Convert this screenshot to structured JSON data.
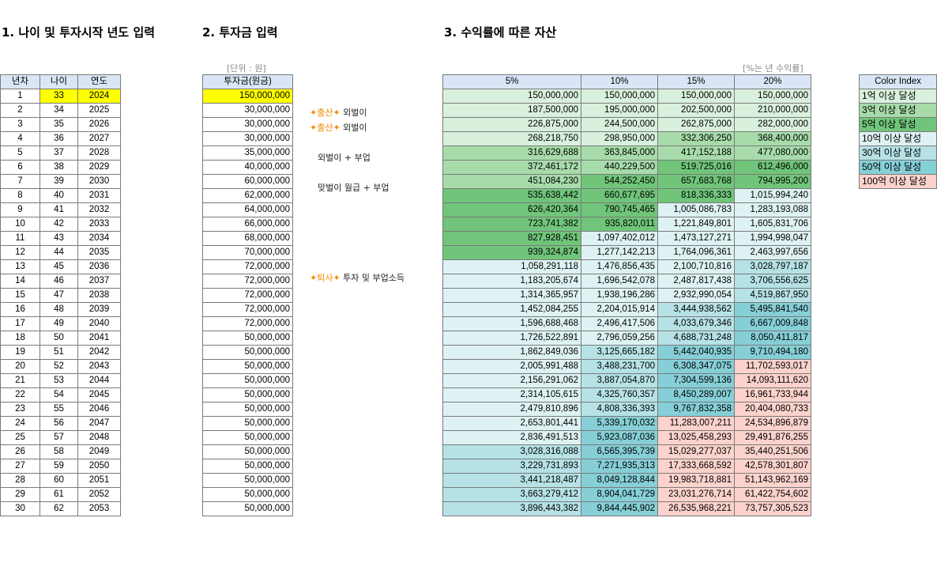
{
  "colors": {
    "header_bg": "#dae6f6",
    "input_highlight": "#ffff00",
    "tier_1": "#d9f0dc",
    "tier_3": "#a7dcaa",
    "tier_5": "#70c57a",
    "tier_10": "#dff2f3",
    "tier_30": "#b6e2e6",
    "tier_50": "#86cfd7",
    "tier_100": "#fbd2cc"
  },
  "sections": {
    "s1": "1. 나이 및 투자시작 년도 입력",
    "s2": "2. 투자금 입력",
    "s3": "3. 수익률에 따른 자산"
  },
  "units": {
    "won": "[단위 : 원]",
    "rate": "[%는 년 수익률]"
  },
  "table1": {
    "headers": [
      "년차",
      "나이",
      "연도"
    ],
    "rows": [
      [
        "1",
        "33",
        "2024"
      ],
      [
        "2",
        "34",
        "2025"
      ],
      [
        "3",
        "35",
        "2026"
      ],
      [
        "4",
        "36",
        "2027"
      ],
      [
        "5",
        "37",
        "2028"
      ],
      [
        "6",
        "38",
        "2029"
      ],
      [
        "7",
        "39",
        "2030"
      ],
      [
        "8",
        "40",
        "2031"
      ],
      [
        "9",
        "41",
        "2032"
      ],
      [
        "10",
        "42",
        "2033"
      ],
      [
        "11",
        "43",
        "2034"
      ],
      [
        "12",
        "44",
        "2035"
      ],
      [
        "13",
        "45",
        "2036"
      ],
      [
        "14",
        "46",
        "2037"
      ],
      [
        "15",
        "47",
        "2038"
      ],
      [
        "16",
        "48",
        "2039"
      ],
      [
        "17",
        "49",
        "2040"
      ],
      [
        "18",
        "50",
        "2041"
      ],
      [
        "19",
        "51",
        "2042"
      ],
      [
        "20",
        "52",
        "2043"
      ],
      [
        "21",
        "53",
        "2044"
      ],
      [
        "22",
        "54",
        "2045"
      ],
      [
        "23",
        "55",
        "2046"
      ],
      [
        "24",
        "56",
        "2047"
      ],
      [
        "25",
        "57",
        "2048"
      ],
      [
        "26",
        "58",
        "2049"
      ],
      [
        "27",
        "59",
        "2050"
      ],
      [
        "28",
        "60",
        "2051"
      ],
      [
        "29",
        "61",
        "2052"
      ],
      [
        "30",
        "62",
        "2053"
      ]
    ]
  },
  "table2": {
    "header": "투자금(원금)",
    "rows": [
      "150,000,000",
      "30,000,000",
      "30,000,000",
      "30,000,000",
      "35,000,000",
      "40,000,000",
      "60,000,000",
      "62,000,000",
      "64,000,000",
      "66,000,000",
      "68,000,000",
      "70,000,000",
      "72,000,000",
      "72,000,000",
      "72,000,000",
      "72,000,000",
      "72,000,000",
      "50,000,000",
      "50,000,000",
      "50,000,000",
      "50,000,000",
      "50,000,000",
      "50,000,000",
      "50,000,000",
      "50,000,000",
      "50,000,000",
      "50,000,000",
      "50,000,000",
      "50,000,000",
      "50,000,000"
    ]
  },
  "notes": [
    {
      "row": 2,
      "spark": "✦",
      "accent": "출산",
      "text": " 외벌이"
    },
    {
      "row": 3,
      "spark": "✦",
      "accent": "출산",
      "text": " 외벌이"
    },
    {
      "row": 5,
      "spark": "",
      "accent": "",
      "text": "외벌이 + 부업"
    },
    {
      "row": 7,
      "spark": "",
      "accent": "",
      "text": "맞벌이 월급 + 부업"
    },
    {
      "row": 13,
      "spark": "✦",
      "accent": "퇴사",
      "text": " 투자 및 부업소득"
    }
  ],
  "table3": {
    "headers": [
      "5%",
      "10%",
      "15%",
      "20%"
    ],
    "rows": [
      [
        "150,000,000",
        "150,000,000",
        "150,000,000",
        "150,000,000"
      ],
      [
        "187,500,000",
        "195,000,000",
        "202,500,000",
        "210,000,000"
      ],
      [
        "226,875,000",
        "244,500,000",
        "262,875,000",
        "282,000,000"
      ],
      [
        "268,218,750",
        "298,950,000",
        "332,306,250",
        "368,400,000"
      ],
      [
        "316,629,688",
        "363,845,000",
        "417,152,188",
        "477,080,000"
      ],
      [
        "372,461,172",
        "440,229,500",
        "519,725,016",
        "612,496,000"
      ],
      [
        "451,084,230",
        "544,252,450",
        "657,683,768",
        "794,995,200"
      ],
      [
        "535,638,442",
        "660,677,695",
        "818,336,333",
        "1,015,994,240"
      ],
      [
        "626,420,364",
        "790,745,465",
        "1,005,086,783",
        "1,283,193,088"
      ],
      [
        "723,741,382",
        "935,820,011",
        "1,221,849,801",
        "1,605,831,706"
      ],
      [
        "827,928,451",
        "1,097,402,012",
        "1,473,127,271",
        "1,994,998,047"
      ],
      [
        "939,324,874",
        "1,277,142,213",
        "1,764,096,361",
        "2,463,997,656"
      ],
      [
        "1,058,291,118",
        "1,476,856,435",
        "2,100,710,816",
        "3,028,797,187"
      ],
      [
        "1,183,205,674",
        "1,696,542,078",
        "2,487,817,438",
        "3,706,556,625"
      ],
      [
        "1,314,365,957",
        "1,938,196,286",
        "2,932,990,054",
        "4,519,867,950"
      ],
      [
        "1,452,084,255",
        "2,204,015,914",
        "3,444,938,562",
        "5,495,841,540"
      ],
      [
        "1,596,688,468",
        "2,496,417,506",
        "4,033,679,346",
        "6,667,009,848"
      ],
      [
        "1,726,522,891",
        "2,796,059,256",
        "4,688,731,248",
        "8,050,411,817"
      ],
      [
        "1,862,849,036",
        "3,125,665,182",
        "5,442,040,935",
        "9,710,494,180"
      ],
      [
        "2,005,991,488",
        "3,488,231,700",
        "6,308,347,075",
        "11,702,593,017"
      ],
      [
        "2,156,291,062",
        "3,887,054,870",
        "7,304,599,136",
        "14,093,111,620"
      ],
      [
        "2,314,105,615",
        "4,325,760,357",
        "8,450,289,007",
        "16,961,733,944"
      ],
      [
        "2,479,810,896",
        "4,808,336,393",
        "9,767,832,358",
        "20,404,080,733"
      ],
      [
        "2,653,801,441",
        "5,339,170,032",
        "11,283,007,211",
        "24,534,896,879"
      ],
      [
        "2,836,491,513",
        "5,923,087,036",
        "13,025,458,293",
        "29,491,876,255"
      ],
      [
        "3,028,316,088",
        "6,565,395,739",
        "15,029,277,037",
        "35,440,251,506"
      ],
      [
        "3,229,731,893",
        "7,271,935,313",
        "17,333,668,592",
        "42,578,301,807"
      ],
      [
        "3,441,218,487",
        "8,049,128,844",
        "19,983,718,881",
        "51,143,962,169"
      ],
      [
        "3,663,279,412",
        "8,904,041,729",
        "23,031,276,714",
        "61,422,754,602"
      ],
      [
        "3,896,443,382",
        "9,844,445,902",
        "26,535,968,221",
        "73,757,305,523"
      ]
    ]
  },
  "color_index": {
    "header": "Color Index",
    "items": [
      {
        "label": "1억 이상 달성",
        "tier": "tier_1"
      },
      {
        "label": "3억 이상 달성",
        "tier": "tier_3"
      },
      {
        "label": "5억 이상 달성",
        "tier": "tier_5"
      },
      {
        "label": "10억 이상 달성",
        "tier": "tier_10"
      },
      {
        "label": "30억 이상 달성",
        "tier": "tier_30"
      },
      {
        "label": "50억 이상 달성",
        "tier": "tier_50"
      },
      {
        "label": "100억 이상 달성",
        "tier": "tier_100"
      }
    ]
  }
}
